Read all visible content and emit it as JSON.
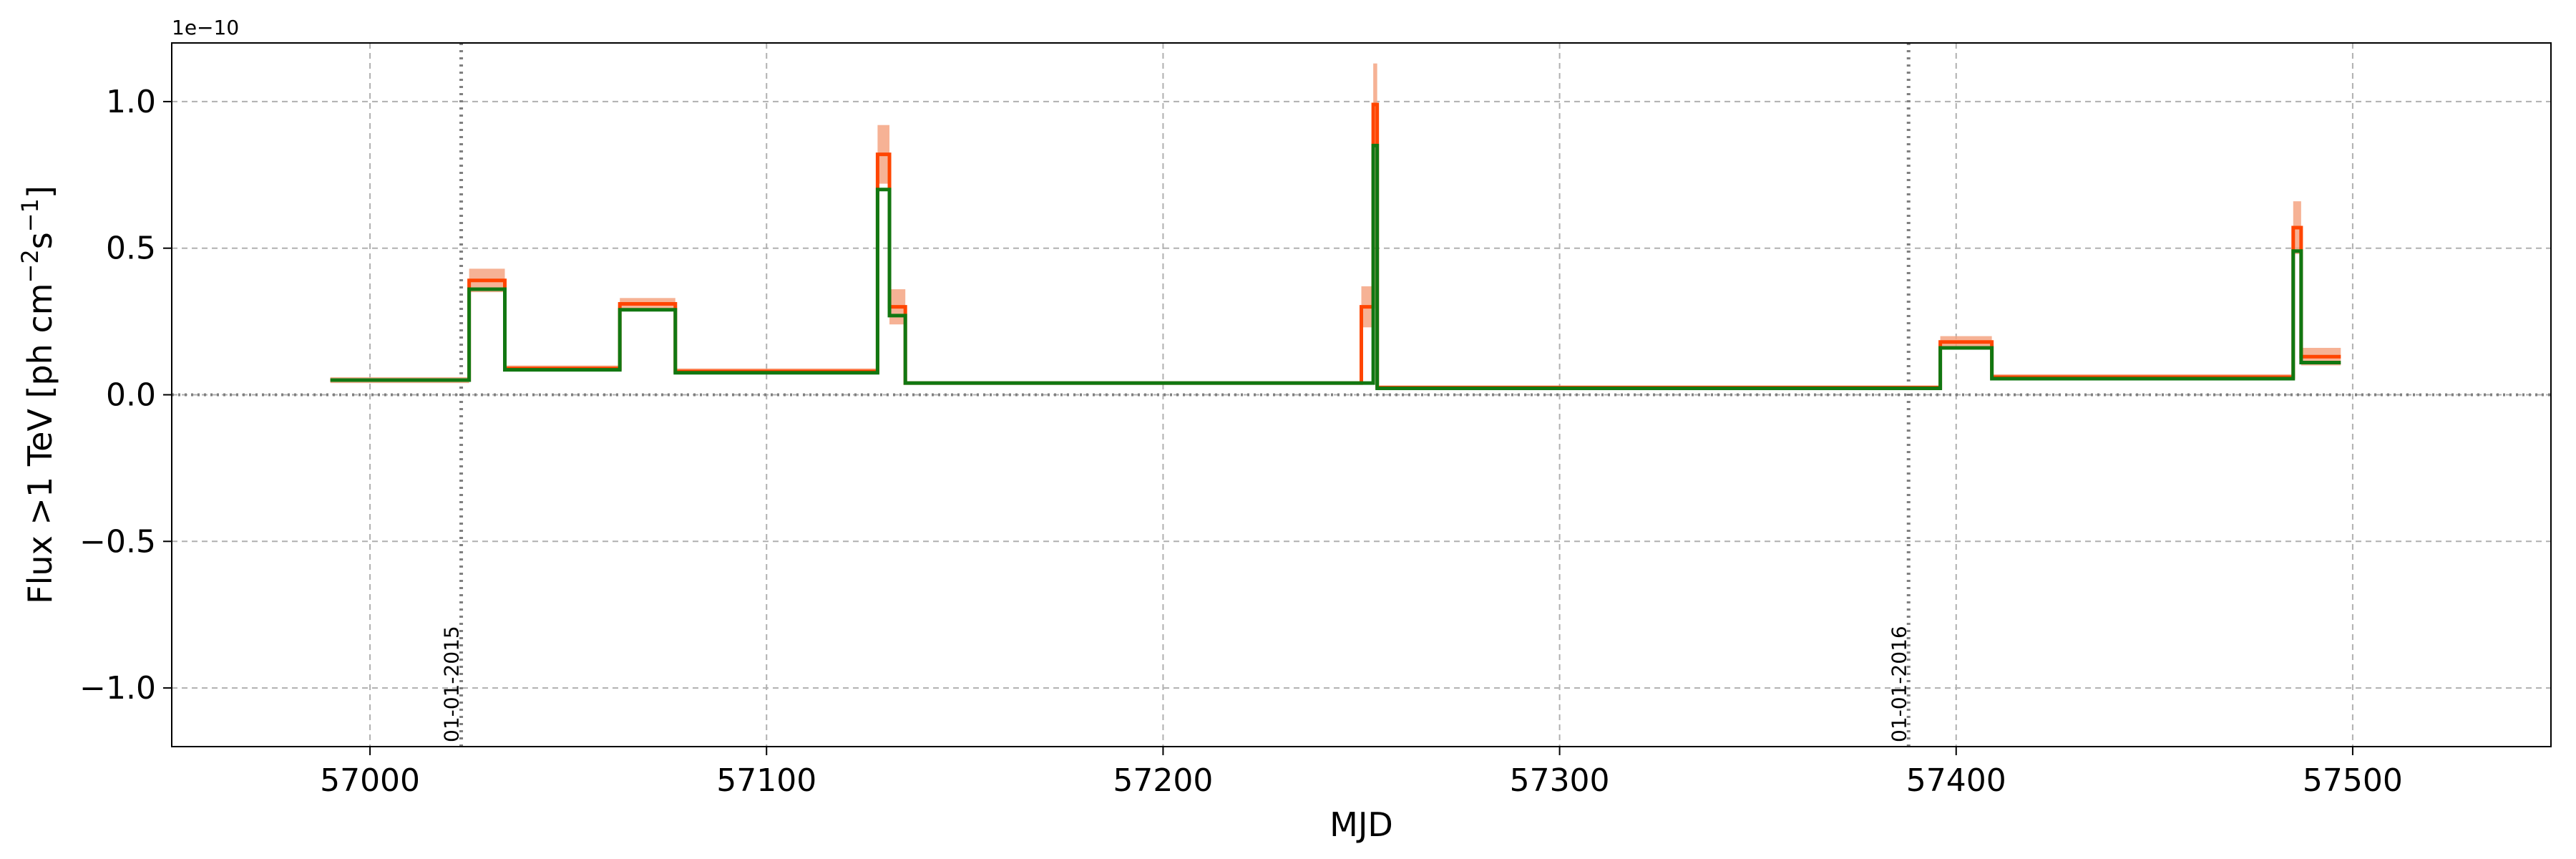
{
  "chart_data": {
    "type": "line",
    "xlabel": "MJD",
    "ylabel_main": "Flux >1 TeV [ph cm",
    "ylabel_exp1": "−2",
    "ylabel_mid": "s",
    "ylabel_exp2": "−1",
    "ylabel_end": "]",
    "y_offset_label": "1e−10",
    "xlim": [
      56950,
      57550
    ],
    "ylim": [
      -1.2,
      1.2
    ],
    "grid": true,
    "xticks": [
      57000,
      57100,
      57200,
      57300,
      57400,
      57500
    ],
    "xtick_labels": [
      "57000",
      "57100",
      "57200",
      "57300",
      "57400",
      "57500"
    ],
    "yticks": [
      1.0,
      0.5,
      0.0,
      -0.5,
      -1.0
    ],
    "ytick_labels": [
      "1.0",
      "0.5",
      "0.0",
      "−0.5",
      "−1.0"
    ],
    "zero_line": 0.0,
    "vertical_markers": [
      {
        "x": 57023,
        "label": "01-01-2015"
      },
      {
        "x": 57388,
        "label": "01-01-2016"
      }
    ],
    "colors": {
      "series_orange": "#ff4500",
      "error_band": "#f4a582",
      "series_green": "#117711",
      "grid": "#b0b0b0",
      "marker_line": "#808080"
    },
    "series": [
      {
        "color": "orange",
        "bins": [
          {
            "x0": 56990,
            "x1": 57025,
            "y": 0.05,
            "err": 0.01
          },
          {
            "x0": 57025,
            "x1": 57034,
            "y": 0.39,
            "err": 0.04
          },
          {
            "x0": 57034,
            "x1": 57063,
            "y": 0.09,
            "err": 0.01
          },
          {
            "x0": 57063,
            "x1": 57077,
            "y": 0.31,
            "err": 0.02
          },
          {
            "x0": 57077,
            "x1": 57128,
            "y": 0.08,
            "err": 0.01
          },
          {
            "x0": 57128,
            "x1": 57131,
            "y": 0.82,
            "err": 0.1
          },
          {
            "x0": 57131,
            "x1": 57135,
            "y": 0.3,
            "err": 0.06
          },
          {
            "x0": 57135,
            "x1": 57250,
            "y": 0.04,
            "err": 0.005
          },
          {
            "x0": 57250,
            "x1": 57253,
            "y": 0.3,
            "err": 0.07
          },
          {
            "x0": 57253,
            "x1": 57254,
            "y": 0.99,
            "err": 0.14
          },
          {
            "x0": 57254,
            "x1": 57396,
            "y": 0.025,
            "err": 0.003
          },
          {
            "x0": 57396,
            "x1": 57409,
            "y": 0.18,
            "err": 0.02
          },
          {
            "x0": 57409,
            "x1": 57485,
            "y": 0.06,
            "err": 0.01
          },
          {
            "x0": 57485,
            "x1": 57487,
            "y": 0.57,
            "err": 0.09
          },
          {
            "x0": 57487,
            "x1": 57497,
            "y": 0.13,
            "err": 0.03
          }
        ]
      },
      {
        "color": "green",
        "bins": [
          {
            "x0": 56990,
            "x1": 57025,
            "y": 0.05
          },
          {
            "x0": 57025,
            "x1": 57034,
            "y": 0.36
          },
          {
            "x0": 57034,
            "x1": 57063,
            "y": 0.085
          },
          {
            "x0": 57063,
            "x1": 57077,
            "y": 0.29
          },
          {
            "x0": 57077,
            "x1": 57128,
            "y": 0.075
          },
          {
            "x0": 57128,
            "x1": 57131,
            "y": 0.7
          },
          {
            "x0": 57131,
            "x1": 57135,
            "y": 0.27
          },
          {
            "x0": 57135,
            "x1": 57253,
            "y": 0.04
          },
          {
            "x0": 57253,
            "x1": 57254,
            "y": 0.85
          },
          {
            "x0": 57254,
            "x1": 57396,
            "y": 0.022
          },
          {
            "x0": 57396,
            "x1": 57409,
            "y": 0.16
          },
          {
            "x0": 57409,
            "x1": 57485,
            "y": 0.055
          },
          {
            "x0": 57485,
            "x1": 57487,
            "y": 0.49
          },
          {
            "x0": 57487,
            "x1": 57497,
            "y": 0.11
          }
        ]
      }
    ]
  }
}
